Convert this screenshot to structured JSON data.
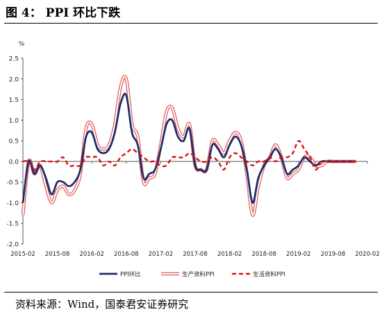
{
  "figure": {
    "title": "图 4：  PPI 环比下跌",
    "source": "资料来源：Wind，国泰君安证券研究"
  },
  "chart_data": {
    "type": "line",
    "unit_label": "%",
    "ylim": [
      -2.0,
      2.5
    ],
    "y_ticks": [
      "2.5",
      "2.0",
      "1.5",
      "1.0",
      "0.5",
      "0.0",
      "-0.5",
      "-1.0",
      "-1.5",
      "-2.0"
    ],
    "x_range": [
      "2015-02",
      "2020-02"
    ],
    "x_ticks": [
      "2015-02",
      "2015-08",
      "2016-02",
      "2016-08",
      "2017-02",
      "2017-08",
      "2018-02",
      "2018-08",
      "2019-02",
      "2019-08",
      "2020-02"
    ],
    "grid": false,
    "legend_position": "bottom",
    "x": [
      "2015-02",
      "2015-03",
      "2015-04",
      "2015-05",
      "2015-06",
      "2015-07",
      "2015-08",
      "2015-09",
      "2015-10",
      "2015-11",
      "2015-12",
      "2016-01",
      "2016-02",
      "2016-03",
      "2016-04",
      "2016-05",
      "2016-06",
      "2016-07",
      "2016-08",
      "2016-09",
      "2016-10",
      "2016-11",
      "2016-12",
      "2017-01",
      "2017-02",
      "2017-03",
      "2017-04",
      "2017-05",
      "2017-06",
      "2017-07",
      "2017-08",
      "2017-09",
      "2017-10",
      "2017-11",
      "2017-12",
      "2018-01",
      "2018-02",
      "2018-03",
      "2018-04",
      "2018-05",
      "2018-06",
      "2018-07",
      "2018-08",
      "2018-09",
      "2018-10",
      "2018-11",
      "2018-12",
      "2019-01",
      "2019-02",
      "2019-03",
      "2019-04",
      "2019-05",
      "2019-06",
      "2019-07",
      "2019-08",
      "2019-09",
      "2019-10",
      "2019-11",
      "2019-12"
    ],
    "series": [
      {
        "name": "PPI环比",
        "color": "#1f2d6b",
        "style": "solid",
        "values": [
          -1.0,
          0.0,
          -0.3,
          -0.1,
          -0.4,
          -0.8,
          -0.5,
          -0.5,
          -0.6,
          -0.5,
          -0.2,
          0.6,
          0.7,
          0.3,
          0.2,
          0.3,
          0.7,
          1.4,
          1.6,
          0.7,
          0.4,
          -0.4,
          -0.3,
          -0.2,
          0.3,
          0.9,
          1.0,
          0.6,
          0.5,
          0.8,
          -0.1,
          -0.2,
          -0.2,
          0.4,
          0.3,
          0.1,
          0.4,
          0.6,
          0.4,
          -0.2,
          -1.0,
          -0.4,
          -0.1,
          0.1,
          0.3,
          0.1,
          -0.3,
          -0.2,
          -0.1,
          0.1,
          0.0,
          -0.1,
          0.0,
          0.0,
          0.0,
          0.0,
          0.0,
          0.0,
          0.0
        ]
      },
      {
        "name": "生产资料PPI",
        "color": "#e06060",
        "style": "double",
        "values": [
          -1.3,
          0.0,
          -0.3,
          -0.1,
          -0.6,
          -1.0,
          -0.7,
          -0.6,
          -0.8,
          -0.7,
          -0.3,
          0.8,
          0.9,
          0.4,
          0.3,
          0.4,
          0.9,
          1.8,
          2.0,
          0.9,
          0.6,
          -0.5,
          -0.4,
          -0.3,
          0.4,
          1.2,
          1.3,
          0.8,
          0.6,
          0.9,
          -0.1,
          -0.2,
          -0.2,
          0.5,
          0.4,
          0.2,
          0.5,
          0.7,
          0.5,
          -0.3,
          -1.3,
          -0.6,
          -0.1,
          0.1,
          0.4,
          0.1,
          -0.4,
          -0.3,
          -0.2,
          0.1,
          0.1,
          -0.1,
          -0.1,
          0.0,
          0.0,
          0.0,
          0.0,
          0.0,
          0.0
        ]
      },
      {
        "name": "生活资料PPI",
        "color": "#dd1111",
        "style": "dashed",
        "values": [
          0.0,
          0.0,
          -0.2,
          0.0,
          0.0,
          0.0,
          0.0,
          0.1,
          -0.1,
          -0.1,
          -0.1,
          0.1,
          0.1,
          0.1,
          -0.1,
          0.0,
          -0.1,
          0.1,
          0.2,
          0.3,
          0.2,
          0.1,
          0.0,
          0.0,
          -0.1,
          -0.1,
          0.1,
          0.1,
          0.1,
          0.2,
          0.1,
          0.0,
          0.0,
          0.1,
          0.0,
          -0.2,
          0.1,
          0.2,
          0.1,
          0.0,
          -0.1,
          0.0,
          0.0,
          0.1,
          0.0,
          0.1,
          0.1,
          0.2,
          0.5,
          0.3,
          0.1,
          -0.2,
          0.0,
          0.0,
          0.0,
          0.0,
          0.0,
          0.0,
          0.0
        ]
      }
    ]
  }
}
